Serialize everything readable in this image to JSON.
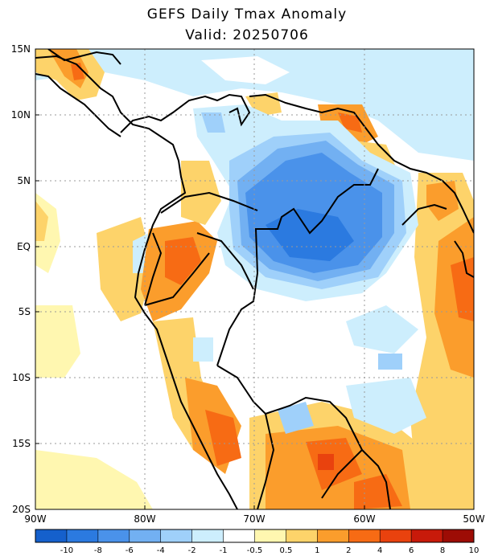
{
  "header": {
    "title": "GEFS Daily Tmax Anomaly",
    "subtitle": "Valid: 20250706"
  },
  "map": {
    "lon_range": [
      -90,
      -50
    ],
    "lat_range": [
      -20,
      15
    ],
    "lat_labels": [
      "15N",
      "10N",
      "5N",
      "EQ",
      "5S",
      "10S",
      "15S",
      "20S"
    ],
    "lon_labels": [
      "90W",
      "80W",
      "70W",
      "60W",
      "50W"
    ],
    "grid": "dotted"
  },
  "colorbar": {
    "tick_labels": [
      "-10",
      "-8",
      "-6",
      "-4",
      "-2",
      "-1",
      "-0.5",
      "0.5",
      "1",
      "2",
      "4",
      "6",
      "8",
      "10"
    ],
    "colors": [
      "#1560cc",
      "#2b7ae0",
      "#4a92ea",
      "#72b0f2",
      "#9fd0fa",
      "#cdeefd",
      "#ffffff",
      "#fff7b0",
      "#fdd36a",
      "#fb9d2c",
      "#f76b14",
      "#e9420e",
      "#c81a0a",
      "#9d0c05"
    ]
  }
}
